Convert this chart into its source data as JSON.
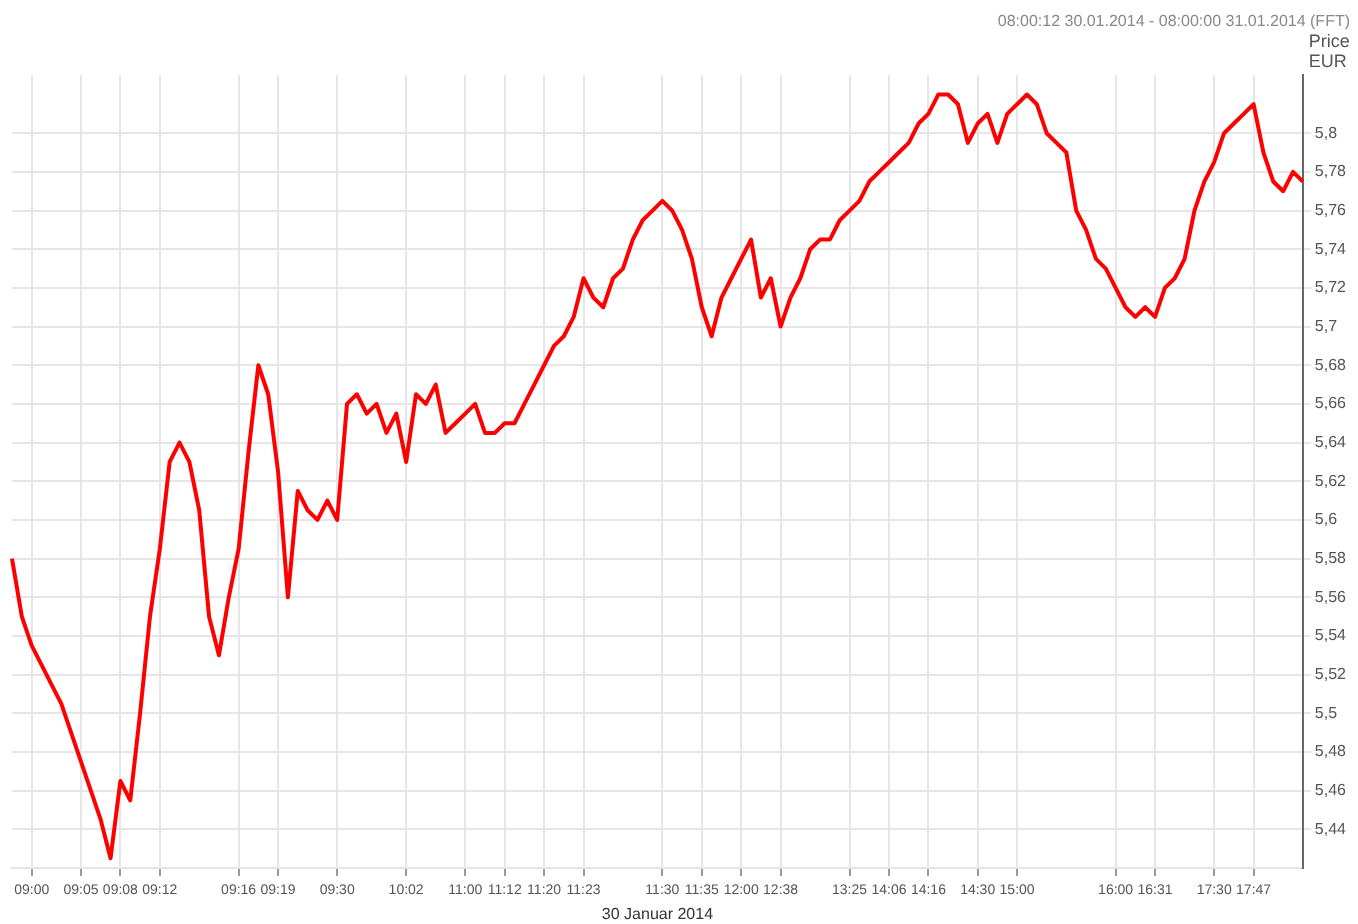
{
  "chart_data": {
    "type": "line",
    "subtitle": "08:00:12 30.01.2014 - 08:00:00 31.01.2014 (FFT)",
    "xlabel": "30 Januar 2014",
    "ylabel": "Price EUR",
    "categories": [
      null,
      null,
      "09:00",
      null,
      null,
      null,
      null,
      "09:05",
      null,
      null,
      null,
      "09:08",
      null,
      null,
      null,
      "09:12",
      null,
      null,
      null,
      null,
      null,
      null,
      null,
      "09:16",
      null,
      null,
      null,
      "09:19",
      null,
      null,
      null,
      null,
      null,
      "09:30",
      null,
      null,
      null,
      null,
      null,
      null,
      "10:02",
      null,
      null,
      null,
      null,
      null,
      "11:00",
      null,
      null,
      null,
      "11:12",
      null,
      null,
      null,
      "11:20",
      null,
      null,
      null,
      "11:23",
      null,
      null,
      null,
      null,
      null,
      null,
      null,
      "11:30",
      null,
      null,
      null,
      "11:35",
      null,
      null,
      null,
      "12:00",
      null,
      null,
      null,
      "12:38",
      null,
      null,
      null,
      null,
      null,
      null,
      "13:25",
      null,
      null,
      null,
      "14:06",
      null,
      null,
      null,
      "14:16",
      null,
      null,
      null,
      null,
      "14:30",
      null,
      null,
      null,
      "15:00",
      null,
      null,
      null,
      null,
      null,
      null,
      null,
      null,
      null,
      "16:00",
      null,
      null,
      null,
      "16:31",
      null,
      null,
      null,
      null,
      null,
      "17:30",
      null,
      null,
      null,
      "17:47",
      null,
      null,
      null,
      null,
      null
    ],
    "series": [
      {
        "color": "#ff0000",
        "values": [
          5.58,
          5.55,
          5.535,
          5.525,
          5.515,
          5.505,
          5.49,
          5.475,
          5.46,
          5.445,
          5.425,
          5.465,
          5.455,
          5.5,
          5.55,
          5.585,
          5.63,
          5.64,
          5.63,
          5.605,
          5.55,
          5.53,
          5.56,
          5.585,
          5.635,
          5.68,
          5.665,
          5.625,
          5.56,
          5.615,
          5.605,
          5.6,
          5.61,
          5.6,
          5.66,
          5.665,
          5.655,
          5.66,
          5.645,
          5.655,
          5.63,
          5.665,
          5.66,
          5.67,
          5.645,
          5.65,
          5.655,
          5.66,
          5.645,
          5.645,
          5.65,
          5.65,
          5.66,
          5.67,
          5.68,
          5.69,
          5.695,
          5.705,
          5.725,
          5.715,
          5.71,
          5.725,
          5.73,
          5.745,
          5.755,
          5.76,
          5.765,
          5.76,
          5.75,
          5.735,
          5.71,
          5.695,
          5.715,
          5.725,
          5.735,
          5.745,
          5.715,
          5.725,
          5.7,
          5.715,
          5.725,
          5.74,
          5.745,
          5.745,
          5.755,
          5.76,
          5.765,
          5.775,
          5.78,
          5.785,
          5.79,
          5.795,
          5.805,
          5.81,
          5.82,
          5.82,
          5.815,
          5.795,
          5.805,
          5.81,
          5.795,
          5.81,
          5.815,
          5.82,
          5.815,
          5.8,
          5.795,
          5.79,
          5.76,
          5.75,
          5.735,
          5.73,
          5.72,
          5.71,
          5.705,
          5.71,
          5.705,
          5.72,
          5.725,
          5.735,
          5.76,
          5.775,
          5.785,
          5.8,
          5.805,
          5.81,
          5.815,
          5.79,
          5.775,
          5.77,
          5.78,
          5.775
        ]
      }
    ],
    "ylim": [
      5.42,
      5.83
    ],
    "yticks": [
      {
        "value": 5.44,
        "label": "5,44"
      },
      {
        "value": 5.46,
        "label": "5,46"
      },
      {
        "value": 5.48,
        "label": "5,48"
      },
      {
        "value": 5.5,
        "label": "5,5"
      },
      {
        "value": 5.52,
        "label": "5,52"
      },
      {
        "value": 5.54,
        "label": "5,54"
      },
      {
        "value": 5.56,
        "label": "5,56"
      },
      {
        "value": 5.58,
        "label": "5,58"
      },
      {
        "value": 5.6,
        "label": "5,6"
      },
      {
        "value": 5.62,
        "label": "5,62"
      },
      {
        "value": 5.64,
        "label": "5,64"
      },
      {
        "value": 5.66,
        "label": "5,66"
      },
      {
        "value": 5.68,
        "label": "5,68"
      },
      {
        "value": 5.7,
        "label": "5,7"
      },
      {
        "value": 5.72,
        "label": "5,72"
      },
      {
        "value": 5.74,
        "label": "5,74"
      },
      {
        "value": 5.76,
        "label": "5,76"
      },
      {
        "value": 5.78,
        "label": "5,78"
      },
      {
        "value": 5.8,
        "label": "5,8"
      }
    ],
    "grid": true,
    "legend": false,
    "marker": "none",
    "line_style": "solid"
  }
}
